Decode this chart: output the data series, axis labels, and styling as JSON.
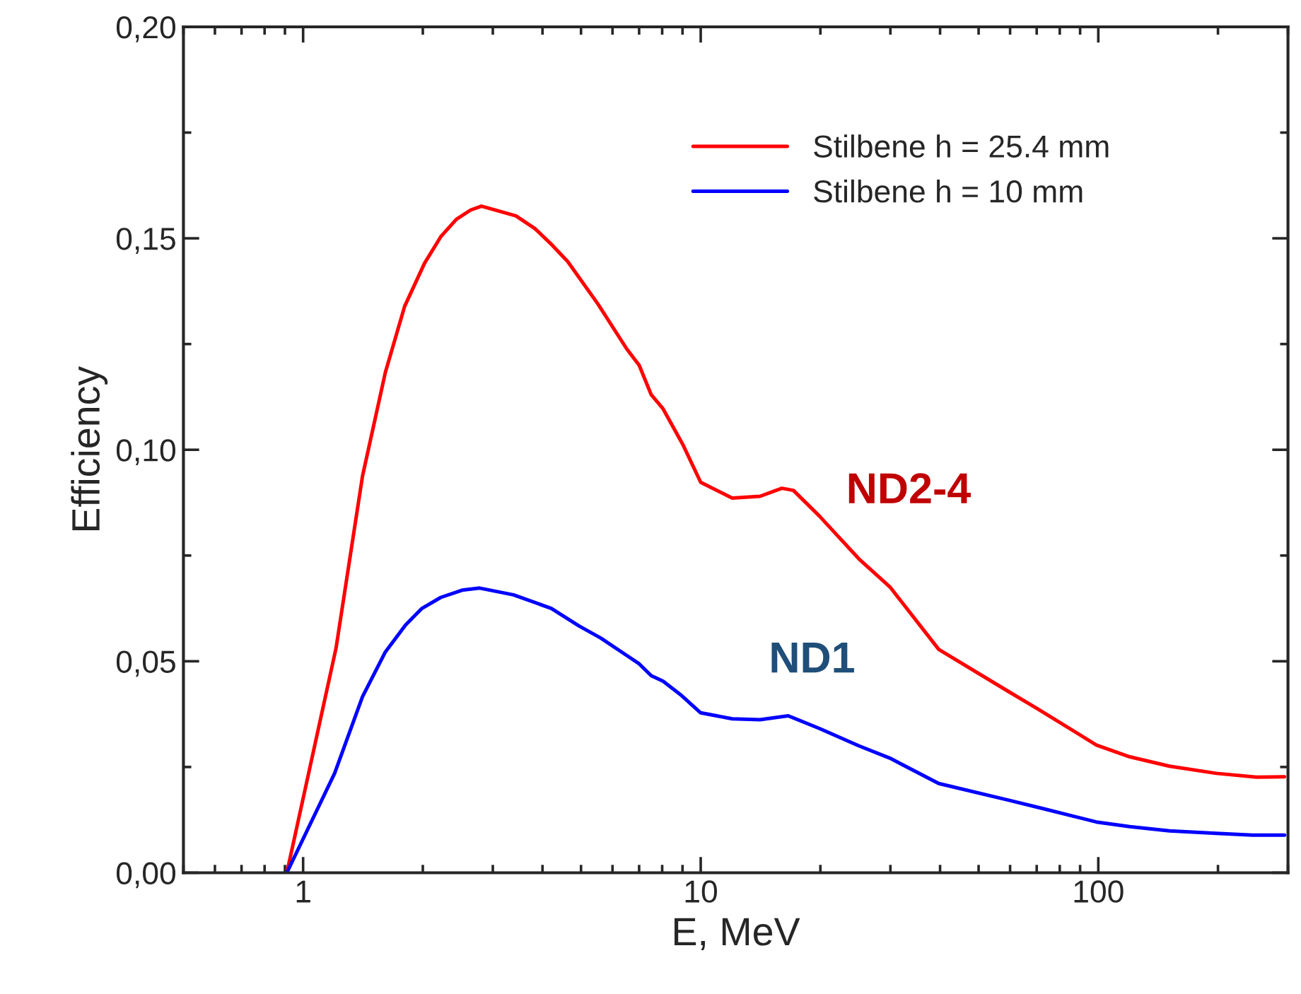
{
  "chart_data": {
    "type": "line",
    "xlabel": "E, MeV",
    "ylabel": "Efficiency",
    "log": "x",
    "xlim": [
      0.5,
      300
    ],
    "xticks": [
      1,
      10,
      100
    ],
    "ylim": [
      0,
      0.2
    ],
    "yticks": [
      {
        "value": 0,
        "label": "0,00"
      },
      {
        "value": 0.05,
        "label": "0,05"
      },
      {
        "value": 0.1,
        "label": "0,10"
      },
      {
        "value": 0.15,
        "label": "0,15"
      },
      {
        "value": 0.2,
        "label": "0,20"
      }
    ],
    "grid": false,
    "legend": "top right",
    "marker": "none",
    "line_style": "solid",
    "series": [
      {
        "name": "Stilbene h = 25.4 mm",
        "color": "#ff0000",
        "x": [
          0.91,
          1.21,
          1.41,
          1.61,
          1.8,
          2.02,
          2.22,
          2.43,
          2.64,
          2.81,
          3.43,
          3.83,
          4.23,
          4.63,
          5.52,
          6.51,
          7.0,
          7.51,
          8.04,
          9.01,
          10.0,
          12.0,
          14.1,
          16.0,
          17.1,
          19.9,
          25.0,
          29.9,
          39.7,
          59.8,
          69.4,
          98.9,
          120,
          151,
          198,
          250,
          294
        ],
        "values": [
          0.0,
          0.0531,
          0.0937,
          0.1183,
          0.1339,
          0.1441,
          0.1504,
          0.1545,
          0.1567,
          0.1576,
          0.1553,
          0.1523,
          0.1484,
          0.1445,
          0.1344,
          0.1239,
          0.12,
          0.113,
          0.1097,
          0.1013,
          0.0923,
          0.0886,
          0.089,
          0.0909,
          0.0904,
          0.0843,
          0.0742,
          0.0676,
          0.0528,
          0.0427,
          0.0391,
          0.0302,
          0.0274,
          0.0252,
          0.0235,
          0.0226,
          0.0227
        ]
      },
      {
        "name": "Stilbene h = 10 mm",
        "color": "#0000ff",
        "x": [
          0.91,
          1.2,
          1.41,
          1.61,
          1.81,
          1.99,
          2.22,
          2.51,
          2.78,
          3.38,
          4.21,
          4.95,
          5.6,
          6.51,
          7.0,
          7.51,
          8.04,
          8.95,
          10.0,
          12.0,
          14.1,
          16.6,
          19.9,
          25.0,
          29.9,
          39.7,
          59.8,
          72.3,
          98.9,
          120,
          151,
          198,
          244,
          294
        ],
        "values": [
          0.0,
          0.0235,
          0.0416,
          0.0522,
          0.0586,
          0.0625,
          0.0651,
          0.0668,
          0.0673,
          0.0657,
          0.0625,
          0.0583,
          0.0555,
          0.0514,
          0.0494,
          0.0466,
          0.0453,
          0.0419,
          0.0378,
          0.0364,
          0.0362,
          0.0371,
          0.0341,
          0.03,
          0.0271,
          0.0211,
          0.0171,
          0.0152,
          0.012,
          0.0109,
          0.0099,
          0.0093,
          0.0089,
          0.0089
        ]
      }
    ],
    "annotations": [
      "ND2-4",
      "ND1"
    ]
  }
}
